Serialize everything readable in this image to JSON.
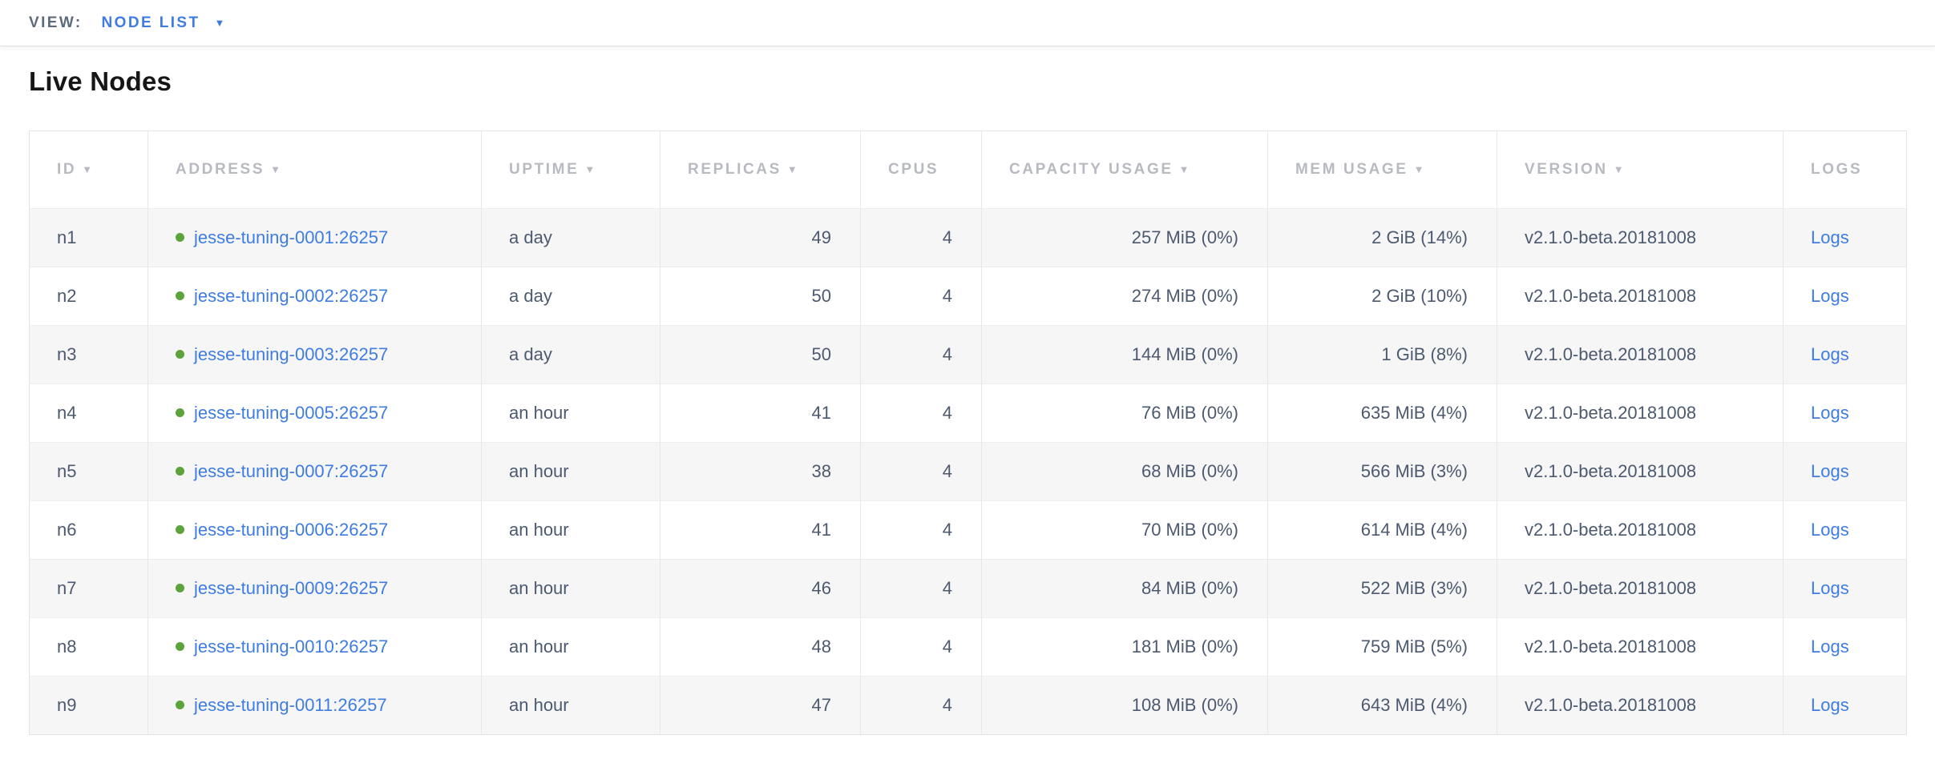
{
  "view_bar": {
    "label": "VIEW:",
    "selected": "NODE LIST"
  },
  "page": {
    "title": "Live Nodes"
  },
  "table": {
    "columns": [
      {
        "label": "ID",
        "sortable": true
      },
      {
        "label": "ADDRESS",
        "sortable": true
      },
      {
        "label": "UPTIME",
        "sortable": true
      },
      {
        "label": "REPLICAS",
        "sortable": true
      },
      {
        "label": "CPUS",
        "sortable": false
      },
      {
        "label": "CAPACITY USAGE",
        "sortable": true
      },
      {
        "label": "MEM USAGE",
        "sortable": true
      },
      {
        "label": "VERSION",
        "sortable": true
      },
      {
        "label": "LOGS",
        "sortable": false
      }
    ],
    "rows": [
      {
        "id": "n1",
        "address": "jesse-tuning-0001:26257",
        "status": "live",
        "uptime": "a day",
        "replicas": "49",
        "cpus": "4",
        "capacity_usage": "257 MiB (0%)",
        "mem_usage": "2 GiB (14%)",
        "version": "v2.1.0-beta.20181008",
        "logs_label": "Logs"
      },
      {
        "id": "n2",
        "address": "jesse-tuning-0002:26257",
        "status": "live",
        "uptime": "a day",
        "replicas": "50",
        "cpus": "4",
        "capacity_usage": "274 MiB (0%)",
        "mem_usage": "2 GiB (10%)",
        "version": "v2.1.0-beta.20181008",
        "logs_label": "Logs"
      },
      {
        "id": "n3",
        "address": "jesse-tuning-0003:26257",
        "status": "live",
        "uptime": "a day",
        "replicas": "50",
        "cpus": "4",
        "capacity_usage": "144 MiB (0%)",
        "mem_usage": "1 GiB (8%)",
        "version": "v2.1.0-beta.20181008",
        "logs_label": "Logs"
      },
      {
        "id": "n4",
        "address": "jesse-tuning-0005:26257",
        "status": "live",
        "uptime": "an hour",
        "replicas": "41",
        "cpus": "4",
        "capacity_usage": "76 MiB (0%)",
        "mem_usage": "635 MiB (4%)",
        "version": "v2.1.0-beta.20181008",
        "logs_label": "Logs"
      },
      {
        "id": "n5",
        "address": "jesse-tuning-0007:26257",
        "status": "live",
        "uptime": "an hour",
        "replicas": "38",
        "cpus": "4",
        "capacity_usage": "68 MiB (0%)",
        "mem_usage": "566 MiB (3%)",
        "version": "v2.1.0-beta.20181008",
        "logs_label": "Logs"
      },
      {
        "id": "n6",
        "address": "jesse-tuning-0006:26257",
        "status": "live",
        "uptime": "an hour",
        "replicas": "41",
        "cpus": "4",
        "capacity_usage": "70 MiB (0%)",
        "mem_usage": "614 MiB (4%)",
        "version": "v2.1.0-beta.20181008",
        "logs_label": "Logs"
      },
      {
        "id": "n7",
        "address": "jesse-tuning-0009:26257",
        "status": "live",
        "uptime": "an hour",
        "replicas": "46",
        "cpus": "4",
        "capacity_usage": "84 MiB (0%)",
        "mem_usage": "522 MiB (3%)",
        "version": "v2.1.0-beta.20181008",
        "logs_label": "Logs"
      },
      {
        "id": "n8",
        "address": "jesse-tuning-0010:26257",
        "status": "live",
        "uptime": "an hour",
        "replicas": "48",
        "cpus": "4",
        "capacity_usage": "181 MiB (0%)",
        "mem_usage": "759 MiB (5%)",
        "version": "v2.1.0-beta.20181008",
        "logs_label": "Logs"
      },
      {
        "id": "n9",
        "address": "jesse-tuning-0011:26257",
        "status": "live",
        "uptime": "an hour",
        "replicas": "47",
        "cpus": "4",
        "capacity_usage": "108 MiB (0%)",
        "mem_usage": "643 MiB (4%)",
        "version": "v2.1.0-beta.20181008",
        "logs_label": "Logs"
      }
    ],
    "sort_icon_glyph": "▼"
  },
  "colors": {
    "link_blue": "#3f7ce2",
    "node_live_green": "#5ca33b",
    "header_text_gray": "#b7bac0",
    "body_text_slate": "#4c596f",
    "row_stripe": "#f6f6f7",
    "view_label_gray": "#5c6b7c"
  }
}
